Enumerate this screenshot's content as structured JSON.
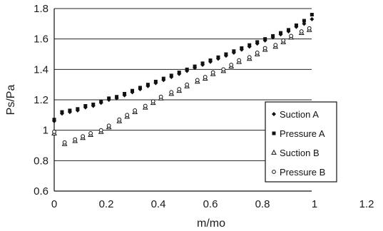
{
  "chart_data": {
    "type": "scatter",
    "xlabel": "m/mo",
    "ylabel": "Ps/Pa",
    "xlim": [
      0,
      1.2
    ],
    "ylim": [
      0.6,
      1.8
    ],
    "x_ticks": [
      "0",
      "0.2",
      "0.4",
      "0.6",
      "0.8",
      "1",
      "1.2"
    ],
    "y_ticks": [
      "0.6",
      "0.8",
      "1",
      "1.2",
      "1.4",
      "1.6",
      "1.8"
    ],
    "grid": "horizontal",
    "legend_position": "lower-right",
    "series": [
      {
        "name": "Suction A",
        "marker": "diamond",
        "color": "#111111",
        "x": [
          0.0,
          0.03,
          0.06,
          0.09,
          0.12,
          0.15,
          0.18,
          0.21,
          0.24,
          0.27,
          0.3,
          0.33,
          0.36,
          0.39,
          0.42,
          0.45,
          0.48,
          0.51,
          0.54,
          0.57,
          0.6,
          0.63,
          0.66,
          0.69,
          0.72,
          0.75,
          0.78,
          0.81,
          0.84,
          0.87,
          0.9,
          0.93,
          0.96,
          0.99
        ],
        "y": [
          1.06,
          1.11,
          1.12,
          1.13,
          1.15,
          1.16,
          1.18,
          1.2,
          1.21,
          1.23,
          1.25,
          1.27,
          1.29,
          1.31,
          1.33,
          1.35,
          1.37,
          1.39,
          1.41,
          1.43,
          1.45,
          1.47,
          1.49,
          1.51,
          1.53,
          1.55,
          1.57,
          1.59,
          1.61,
          1.63,
          1.65,
          1.68,
          1.7,
          1.73
        ]
      },
      {
        "name": "Pressure A",
        "marker": "square",
        "color": "#111111",
        "x": [
          0.0,
          0.03,
          0.06,
          0.09,
          0.12,
          0.15,
          0.18,
          0.21,
          0.24,
          0.27,
          0.3,
          0.33,
          0.36,
          0.39,
          0.42,
          0.45,
          0.48,
          0.51,
          0.54,
          0.57,
          0.6,
          0.63,
          0.66,
          0.69,
          0.72,
          0.75,
          0.78,
          0.81,
          0.84,
          0.87,
          0.9,
          0.93,
          0.96,
          0.99
        ],
        "y": [
          1.07,
          1.12,
          1.13,
          1.14,
          1.16,
          1.17,
          1.19,
          1.21,
          1.22,
          1.24,
          1.26,
          1.28,
          1.3,
          1.32,
          1.34,
          1.36,
          1.38,
          1.4,
          1.42,
          1.44,
          1.46,
          1.48,
          1.5,
          1.52,
          1.54,
          1.56,
          1.58,
          1.6,
          1.62,
          1.64,
          1.66,
          1.69,
          1.72,
          1.76
        ]
      },
      {
        "name": "Suction B",
        "marker": "triangle",
        "color": "#111111",
        "x": [
          0.0,
          0.04,
          0.08,
          0.11,
          0.14,
          0.18,
          0.21,
          0.25,
          0.28,
          0.31,
          0.35,
          0.38,
          0.41,
          0.45,
          0.48,
          0.51,
          0.55,
          0.58,
          0.61,
          0.65,
          0.68,
          0.71,
          0.75,
          0.78,
          0.81,
          0.85,
          0.88,
          0.91,
          0.95,
          0.98
        ],
        "y": [
          0.98,
          0.91,
          0.93,
          0.95,
          0.97,
          0.99,
          1.02,
          1.06,
          1.09,
          1.12,
          1.15,
          1.18,
          1.21,
          1.24,
          1.26,
          1.29,
          1.32,
          1.34,
          1.37,
          1.39,
          1.42,
          1.45,
          1.47,
          1.5,
          1.53,
          1.55,
          1.58,
          1.61,
          1.64,
          1.66
        ]
      },
      {
        "name": "Pressure B",
        "marker": "circle",
        "color": "#111111",
        "x": [
          0.0,
          0.04,
          0.08,
          0.11,
          0.14,
          0.18,
          0.21,
          0.25,
          0.28,
          0.31,
          0.35,
          0.38,
          0.41,
          0.45,
          0.48,
          0.51,
          0.55,
          0.58,
          0.61,
          0.65,
          0.68,
          0.71,
          0.75,
          0.78,
          0.81,
          0.85,
          0.88,
          0.91,
          0.95,
          0.98
        ],
        "y": [
          0.99,
          0.92,
          0.94,
          0.96,
          0.98,
          1.0,
          1.03,
          1.07,
          1.1,
          1.13,
          1.16,
          1.19,
          1.22,
          1.25,
          1.27,
          1.3,
          1.33,
          1.35,
          1.38,
          1.4,
          1.43,
          1.46,
          1.48,
          1.51,
          1.54,
          1.56,
          1.59,
          1.62,
          1.65,
          1.67
        ]
      }
    ]
  }
}
